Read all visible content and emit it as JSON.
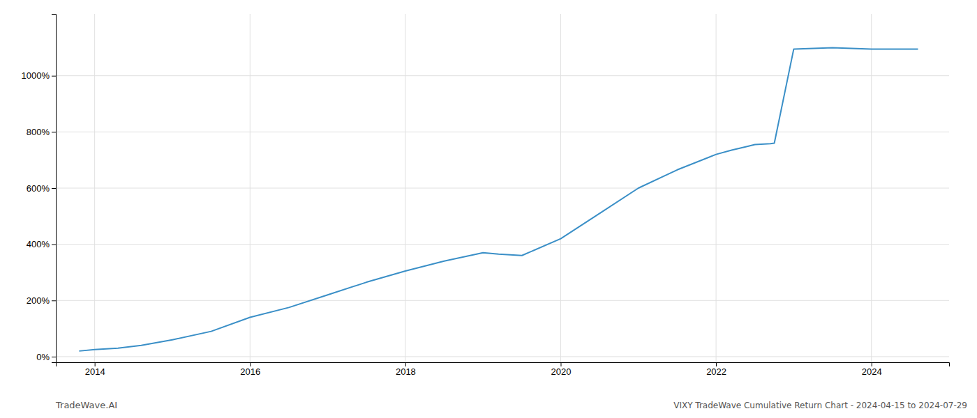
{
  "chart_data": {
    "type": "line",
    "title": "VIXY TradeWave Cumulative Return Chart - 2024-04-15 to 2024-07-29",
    "annotations": [
      "TradeWave.AI"
    ],
    "x": [
      2013.8,
      2014.0,
      2014.3,
      2014.6,
      2015.0,
      2015.5,
      2016.0,
      2016.5,
      2017.0,
      2017.5,
      2018.0,
      2018.5,
      2019.0,
      2019.2,
      2019.5,
      2020.0,
      2020.5,
      2021.0,
      2021.5,
      2022.0,
      2022.2,
      2022.4,
      2022.5,
      2022.7,
      2022.75,
      2023.0,
      2023.5,
      2024.0,
      2024.3,
      2024.6
    ],
    "values": [
      20,
      25,
      30,
      40,
      60,
      90,
      140,
      175,
      220,
      265,
      305,
      340,
      370,
      365,
      360,
      420,
      510,
      600,
      665,
      720,
      735,
      748,
      755,
      758,
      760,
      1095,
      1100,
      1095,
      1095,
      1095
    ],
    "color": "#3a8fc7",
    "xlim": [
      2013.5,
      2025.0
    ],
    "ylim": [
      -20,
      1220
    ],
    "xticks": [
      2014,
      2016,
      2018,
      2020,
      2022,
      2024
    ],
    "yticks": [
      {
        "value": 0,
        "label": "0%"
      },
      {
        "value": 200,
        "label": "200%"
      },
      {
        "value": 400,
        "label": "400%"
      },
      {
        "value": 600,
        "label": "600%"
      },
      {
        "value": 800,
        "label": "800%"
      },
      {
        "value": 1000,
        "label": "1000%"
      }
    ],
    "grid": true
  }
}
